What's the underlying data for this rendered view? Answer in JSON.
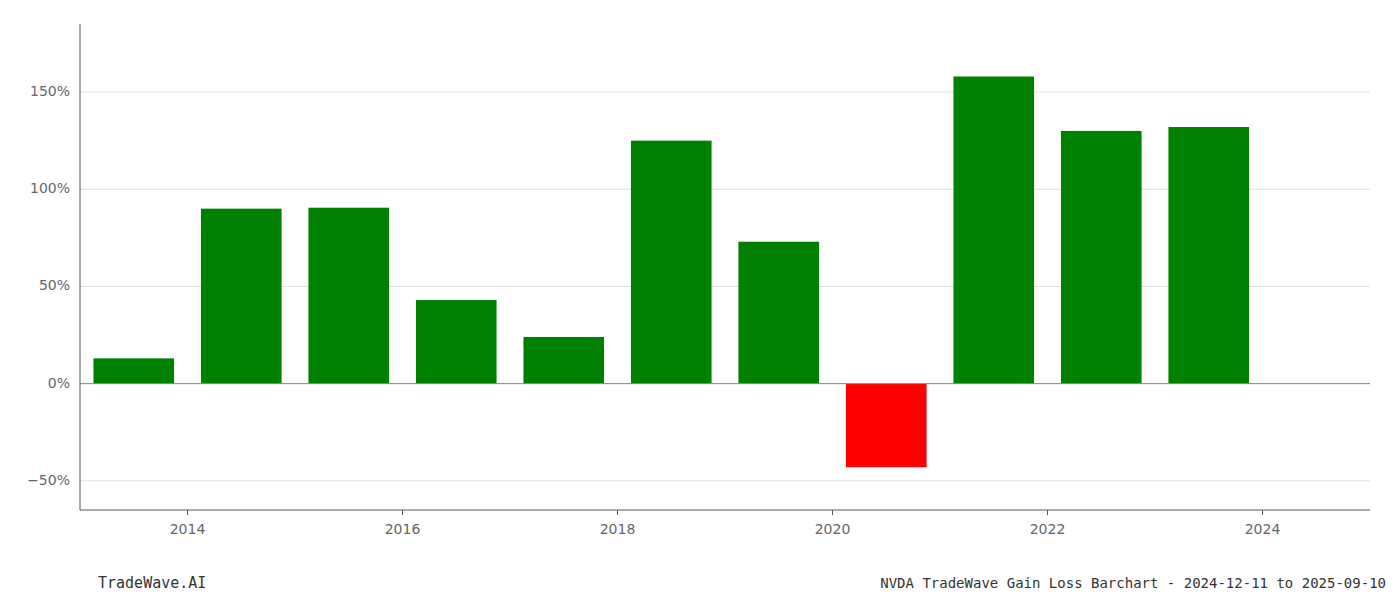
{
  "chart_data": {
    "type": "bar",
    "title": "NVDA TradeWave Gain Loss Barchart - 2024-12-11 to 2025-09-10",
    "annotations": [
      "TradeWave.AI"
    ],
    "x": [
      2013,
      2014,
      2015,
      2016,
      2017,
      2018,
      2019,
      2020,
      2021,
      2022,
      2023
    ],
    "values": [
      13.0,
      90.0,
      90.5,
      43.0,
      24.0,
      125.0,
      73.0,
      -43.0,
      158.0,
      130.0,
      132.0
    ],
    "colors": [
      "#008000",
      "#008000",
      "#008000",
      "#008000",
      "#008000",
      "#008000",
      "#008000",
      "#ff0000",
      "#008000",
      "#008000",
      "#008000"
    ],
    "xlim": [
      2013,
      2025
    ],
    "xticks": [
      2014,
      2016,
      2018,
      2020,
      2022,
      2024
    ],
    "ylim": [
      -65,
      185
    ],
    "yticks": [
      {
        "value": -50,
        "label": "−50%"
      },
      {
        "value": 0,
        "label": "0%"
      },
      {
        "value": 50,
        "label": "50%"
      },
      {
        "value": 100,
        "label": "100%"
      },
      {
        "value": 150,
        "label": "150%"
      }
    ],
    "grid": true
  }
}
